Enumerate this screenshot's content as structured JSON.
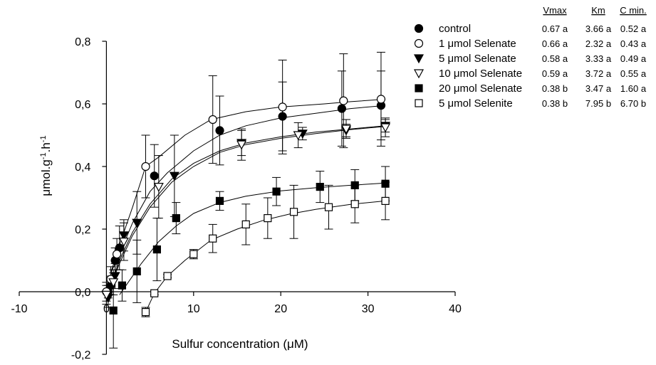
{
  "chart_data": {
    "type": "scatter",
    "title": "",
    "xlabel": "Sulfur concentration (μM)",
    "ylabel": "μmol.g",
    "ylabel_sup1": "-1",
    "ylabel_mid": ".h",
    "ylabel_sup2": "-1",
    "xlim": [
      -10,
      40
    ],
    "ylim": [
      -0.2,
      0.8
    ],
    "x_ticks": [
      -10,
      0,
      10,
      20,
      30,
      40
    ],
    "x_tick_labels": [
      "-10",
      "0",
      "10",
      "20",
      "30",
      "40"
    ],
    "y_ticks": [
      -0.2,
      0.0,
      0.2,
      0.4,
      0.6,
      0.8
    ],
    "y_tick_labels": [
      "-0,2",
      "0,0",
      "0,2",
      "0,4",
      "0,6",
      "0,8"
    ],
    "grid": false,
    "legend_position": "top-right",
    "stats_headers": [
      "Vmax",
      "Km",
      "C min."
    ],
    "series": [
      {
        "name": "control",
        "marker": "circle",
        "filled": true,
        "stats": [
          "0.67 a",
          "3.66 a",
          "0.52 a"
        ],
        "points": [
          [
            0.2,
            0.0,
            0.02
          ],
          [
            0.5,
            0.02,
            0.03
          ],
          [
            1.0,
            0.1,
            0.04
          ],
          [
            1.5,
            0.14,
            0.07
          ],
          [
            5.5,
            0.37,
            0.1
          ],
          [
            13,
            0.515,
            0.11
          ],
          [
            20.2,
            0.56,
            0.11
          ],
          [
            27,
            0.585,
            0.12
          ],
          [
            31.5,
            0.595,
            0.11
          ]
        ],
        "curve": [
          [
            0.5,
            0.06
          ],
          [
            1.5,
            0.12
          ],
          [
            3,
            0.22
          ],
          [
            5,
            0.32
          ],
          [
            7,
            0.38
          ],
          [
            10,
            0.45
          ],
          [
            13,
            0.5
          ],
          [
            16,
            0.53
          ],
          [
            20,
            0.555
          ],
          [
            24,
            0.57
          ],
          [
            28,
            0.585
          ],
          [
            32,
            0.595
          ]
        ]
      },
      {
        "name": "1 μmol Selenate",
        "marker": "circle",
        "filled": false,
        "stats": [
          "0.66 a",
          "2.32 a",
          "0.43 a"
        ],
        "points": [
          [
            0.0,
            0.0,
            0.03
          ],
          [
            0.5,
            0.04,
            0.04
          ],
          [
            1.2,
            0.12,
            0.05
          ],
          [
            4.5,
            0.4,
            0.1
          ],
          [
            12.2,
            0.55,
            0.14
          ],
          [
            20.2,
            0.59,
            0.15
          ],
          [
            27.2,
            0.61,
            0.15
          ],
          [
            31.5,
            0.615,
            0.15
          ]
        ],
        "curve": [
          [
            0.5,
            0.06
          ],
          [
            1.5,
            0.15
          ],
          [
            3,
            0.27
          ],
          [
            4.5,
            0.4
          ],
          [
            6,
            0.43
          ],
          [
            9,
            0.5
          ],
          [
            12,
            0.55
          ],
          [
            16,
            0.575
          ],
          [
            20,
            0.59
          ],
          [
            25,
            0.6
          ],
          [
            28,
            0.607
          ],
          [
            32,
            0.615
          ]
        ]
      },
      {
        "name": "5 μmol Selenate",
        "marker": "triangle-down",
        "filled": true,
        "stats": [
          "0.58 a",
          "3.33 a",
          "0.49 a"
        ],
        "points": [
          [
            0.2,
            -0.02,
            0.03
          ],
          [
            1.0,
            0.05,
            0.04
          ],
          [
            2.0,
            0.18,
            0.05
          ],
          [
            3.5,
            0.22,
            0.1
          ],
          [
            7.8,
            0.37,
            0.13
          ],
          [
            15.5,
            0.475,
            0.04
          ],
          [
            22.5,
            0.505,
            0.02
          ],
          [
            27.5,
            0.515,
            0.02
          ],
          [
            32,
            0.53,
            0.02
          ]
        ],
        "curve": [
          [
            0.5,
            0.02
          ],
          [
            1.5,
            0.1
          ],
          [
            3,
            0.19
          ],
          [
            5,
            0.28
          ],
          [
            7.5,
            0.36
          ],
          [
            10,
            0.41
          ],
          [
            13,
            0.45
          ],
          [
            16,
            0.475
          ],
          [
            20,
            0.495
          ],
          [
            24,
            0.51
          ],
          [
            28,
            0.52
          ],
          [
            32,
            0.53
          ]
        ]
      },
      {
        "name": "10 μmol Selenate",
        "marker": "triangle-down",
        "filled": false,
        "stats": [
          "0.59 a",
          "3.72 a",
          "0.55 a"
        ],
        "points": [
          [
            0.0,
            -0.01,
            0.03
          ],
          [
            0.8,
            0.03,
            0.04
          ],
          [
            2.0,
            0.16,
            0.06
          ],
          [
            6.0,
            0.335,
            0.1
          ],
          [
            15.5,
            0.47,
            0.05
          ],
          [
            22,
            0.5,
            0.04
          ],
          [
            27.5,
            0.52,
            0.03
          ],
          [
            32,
            0.525,
            0.03
          ]
        ],
        "curve": [
          [
            0.5,
            0.02
          ],
          [
            1.5,
            0.09
          ],
          [
            3,
            0.18
          ],
          [
            5,
            0.27
          ],
          [
            7.5,
            0.35
          ],
          [
            10,
            0.4
          ],
          [
            13,
            0.445
          ],
          [
            16,
            0.47
          ],
          [
            20,
            0.49
          ],
          [
            24,
            0.505
          ],
          [
            28,
            0.518
          ],
          [
            32,
            0.528
          ]
        ]
      },
      {
        "name": "20 μmol Selenate",
        "marker": "square",
        "filled": true,
        "stats": [
          "0.38 b",
          "3.47 a",
          "1.60 a"
        ],
        "points": [
          [
            0.8,
            -0.06,
            0.12
          ],
          [
            1.8,
            0.02,
            0.05
          ],
          [
            3.5,
            0.065,
            0.1
          ],
          [
            5.8,
            0.135,
            0.1
          ],
          [
            8.0,
            0.235,
            0.05
          ],
          [
            13,
            0.29,
            0.03
          ],
          [
            19.5,
            0.32,
            0.045
          ],
          [
            24.5,
            0.335,
            0.05
          ],
          [
            28.5,
            0.34,
            0.05
          ],
          [
            32,
            0.345,
            0.055
          ]
        ],
        "curve": [
          [
            1.5,
            -0.01
          ],
          [
            2.5,
            0.03
          ],
          [
            4,
            0.09
          ],
          [
            6,
            0.16
          ],
          [
            8,
            0.21
          ],
          [
            10,
            0.25
          ],
          [
            13,
            0.285
          ],
          [
            16,
            0.305
          ],
          [
            20,
            0.322
          ],
          [
            24,
            0.332
          ],
          [
            28,
            0.34
          ],
          [
            32,
            0.347
          ]
        ]
      },
      {
        "name": "5 μmol Selenite",
        "marker": "square",
        "filled": false,
        "stats": [
          "0.38 b",
          "7.95 b",
          "6.70 b"
        ],
        "points": [
          [
            4.5,
            -0.065,
            0.015
          ],
          [
            5.5,
            -0.005,
            0.005
          ],
          [
            7.0,
            0.05,
            0.005
          ],
          [
            10,
            0.12,
            0.015
          ],
          [
            12.2,
            0.17,
            0.045
          ],
          [
            16,
            0.215,
            0.065
          ],
          [
            18.5,
            0.235,
            0.065
          ],
          [
            21.5,
            0.255,
            0.085
          ],
          [
            25.5,
            0.27,
            0.07
          ],
          [
            28.5,
            0.28,
            0.06
          ],
          [
            32,
            0.29,
            0.06
          ]
        ],
        "curve": [
          [
            4.5,
            -0.065
          ],
          [
            5.5,
            -0.005
          ],
          [
            7,
            0.05
          ],
          [
            9,
            0.1
          ],
          [
            12,
            0.165
          ],
          [
            15,
            0.2
          ],
          [
            18,
            0.228
          ],
          [
            21,
            0.248
          ],
          [
            24,
            0.263
          ],
          [
            28,
            0.279
          ],
          [
            32,
            0.29
          ]
        ]
      }
    ]
  }
}
